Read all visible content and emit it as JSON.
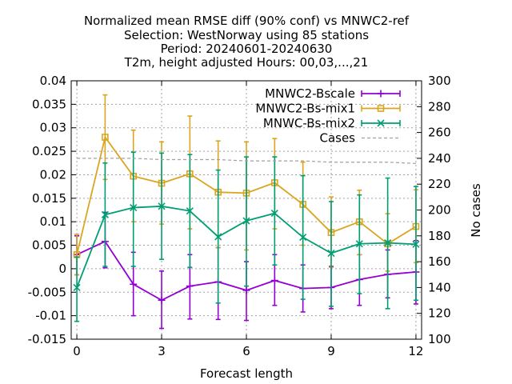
{
  "chart_data": {
    "type": "line",
    "title_lines": [
      "Normalized mean RMSE diff (90% conf) vs MNWC2-ref",
      "Selection: WestNorway using    85 stations",
      "Period: 20240601-20240630",
      "T2m, height adjusted   Hours: 00,03,...,21"
    ],
    "xlabel": "Forecast length",
    "ylabel_left": "",
    "ylabel_right": "No cases",
    "xlim": [
      -0.2,
      12.2
    ],
    "ylim_left": [
      -0.015,
      0.04
    ],
    "ylim_right": [
      100,
      300
    ],
    "x_ticks": [
      "0",
      "3",
      "6",
      "9",
      "12"
    ],
    "y_left_ticks": [
      "-0.015",
      "-0.01",
      "-0.005",
      "0",
      "0.005",
      "0.01",
      "0.015",
      "0.02",
      "0.025",
      "0.03",
      "0.035",
      "0.04"
    ],
    "y_right_ticks": [
      "100",
      "120",
      "140",
      "160",
      "180",
      "200",
      "220",
      "240",
      "260",
      "280",
      "300"
    ],
    "grid": true,
    "legend_position": "top-right",
    "x": [
      0,
      1,
      2,
      3,
      4,
      5,
      6,
      7,
      8,
      9,
      10,
      11,
      12
    ],
    "series": [
      {
        "name": "MNWC2-Bscale",
        "color": "#9400d3",
        "marker": "plus",
        "axis": "left",
        "values": [
          0.003,
          0.0058,
          -0.0033,
          -0.0067,
          -0.0037,
          -0.0028,
          -0.0046,
          -0.0025,
          -0.0042,
          -0.004,
          -0.0023,
          -0.0012,
          -0.0007
        ],
        "err_low": [
          -0.0013,
          0.0002,
          -0.01,
          -0.0127,
          -0.0107,
          -0.0108,
          -0.011,
          -0.0078,
          -0.0092,
          -0.0085,
          -0.0078,
          -0.0062,
          -0.0075
        ],
        "err_high": [
          0.007,
          0.012,
          0.0035,
          -0.0005,
          0.003,
          0.0045,
          0.0015,
          0.003,
          0.0008,
          0.0005,
          0.003,
          0.004,
          0.006
        ]
      },
      {
        "name": "MNWC2-Bs-mix1",
        "color": "#daa520",
        "marker": "square",
        "axis": "left",
        "values": [
          0.003,
          0.028,
          0.0197,
          0.0182,
          0.0202,
          0.0163,
          0.0161,
          0.0183,
          0.0137,
          0.0077,
          0.01,
          0.0053,
          0.009
        ],
        "err_low": [
          -0.0013,
          0.019,
          0.01,
          0.0095,
          0.0085,
          0.0045,
          0.004,
          0.0085,
          0.005,
          0.0003,
          0.003,
          -0.0005,
          0.0013
        ],
        "err_high": [
          0.0073,
          0.037,
          0.0295,
          0.027,
          0.0325,
          0.0272,
          0.027,
          0.0277,
          0.0227,
          0.0153,
          0.0167,
          0.0117,
          0.0168
        ]
      },
      {
        "name": "MNWC-Bs-mix2",
        "color": "#009e73",
        "marker": "cross",
        "axis": "left",
        "values": [
          -0.004,
          0.0115,
          0.013,
          0.0133,
          0.0123,
          0.0068,
          0.0102,
          0.0118,
          0.0067,
          0.0033,
          0.0053,
          0.0055,
          0.0052
        ],
        "err_low": [
          -0.0112,
          0.0005,
          0.0005,
          0.002,
          0.0003,
          -0.0073,
          -0.0037,
          0.0008,
          -0.0065,
          -0.008,
          -0.0053,
          -0.0085,
          -0.0067
        ],
        "err_high": [
          0.0025,
          0.0225,
          0.0248,
          0.0246,
          0.0243,
          0.021,
          0.0238,
          0.0238,
          0.0198,
          0.0143,
          0.0157,
          0.0193,
          0.0175
        ]
      },
      {
        "name": "Cases",
        "color": "#a0a0a0",
        "marker": "none",
        "dashed": true,
        "axis": "right",
        "values": [
          240,
          240,
          240,
          239,
          239,
          239,
          238,
          238,
          238,
          237,
          237,
          237,
          236
        ]
      }
    ]
  }
}
